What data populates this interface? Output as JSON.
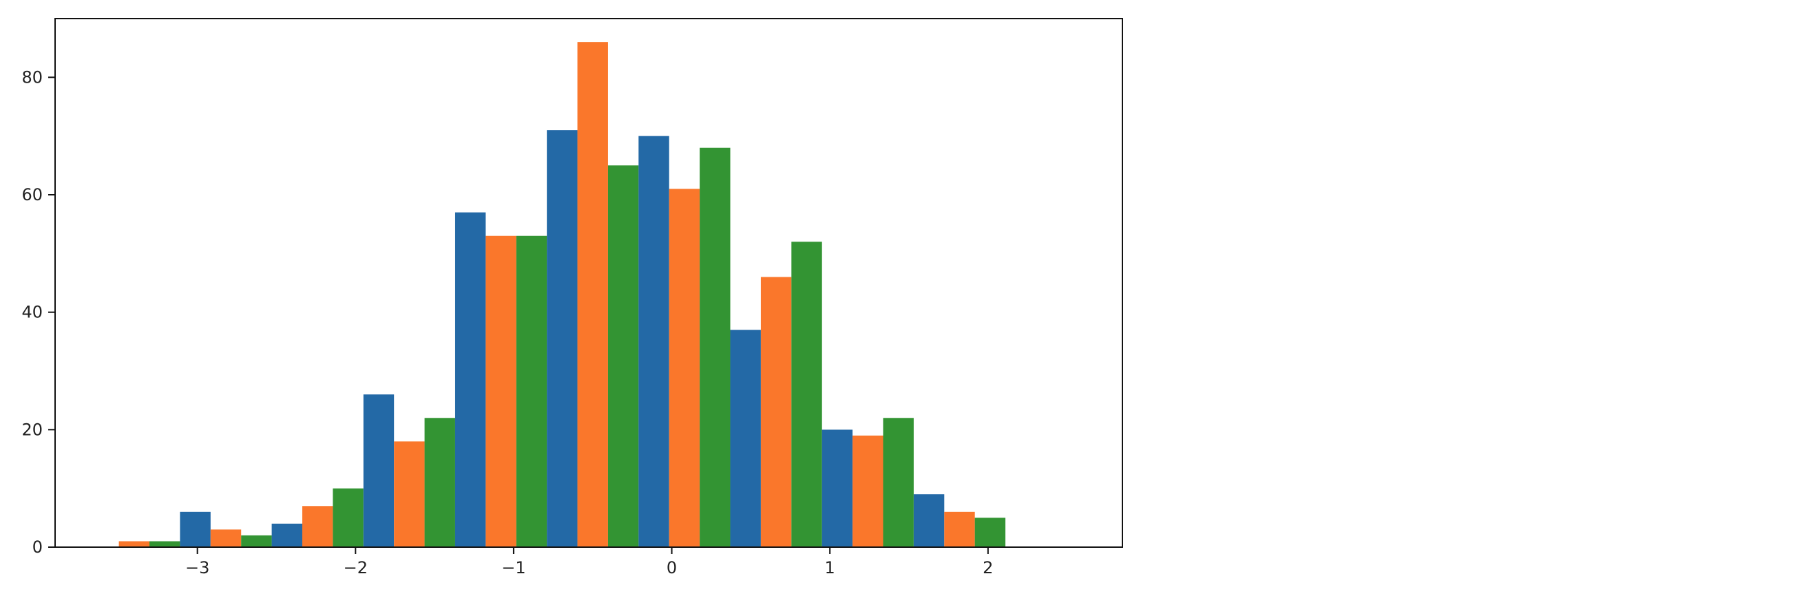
{
  "chart_data": {
    "type": "bar",
    "title": "",
    "xlabel": "",
    "ylabel": "",
    "bins": [
      [
        -3.69,
        -3.11
      ],
      [
        -3.11,
        -2.53
      ],
      [
        -2.53,
        -1.95
      ],
      [
        -1.95,
        -1.37
      ],
      [
        -1.37,
        -0.79
      ],
      [
        -0.79,
        -0.21
      ],
      [
        -0.21,
        0.37
      ],
      [
        0.37,
        0.95
      ],
      [
        0.95,
        1.53
      ],
      [
        1.53,
        2.11
      ],
      [
        2.11,
        2.69
      ]
    ],
    "x_ticks": [
      {
        "value": -3,
        "label": "−3"
      },
      {
        "value": -2,
        "label": "−2"
      },
      {
        "value": -1,
        "label": "−1"
      },
      {
        "value": 0,
        "label": "0"
      },
      {
        "value": 1,
        "label": "1"
      },
      {
        "value": 2,
        "label": "2"
      }
    ],
    "y_ticks": [
      {
        "value": 0,
        "label": "0"
      },
      {
        "value": 20,
        "label": "20"
      },
      {
        "value": 40,
        "label": "40"
      },
      {
        "value": 60,
        "label": "60"
      },
      {
        "value": 80,
        "label": "80"
      }
    ],
    "xlim": [
      -3.9,
      2.85
    ],
    "ylim": [
      0,
      90
    ],
    "grid": false,
    "series": [
      {
        "color": "#2369a6",
        "values": [
          0,
          6,
          4,
          26,
          57,
          71,
          70,
          37,
          20,
          9,
          0
        ]
      },
      {
        "color": "#fa772b",
        "values": [
          1,
          3,
          7,
          18,
          53,
          86,
          61,
          46,
          19,
          6,
          0
        ]
      },
      {
        "color": "#339433",
        "values": [
          1,
          2,
          10,
          22,
          53,
          65,
          68,
          52,
          22,
          5,
          0
        ]
      }
    ]
  }
}
